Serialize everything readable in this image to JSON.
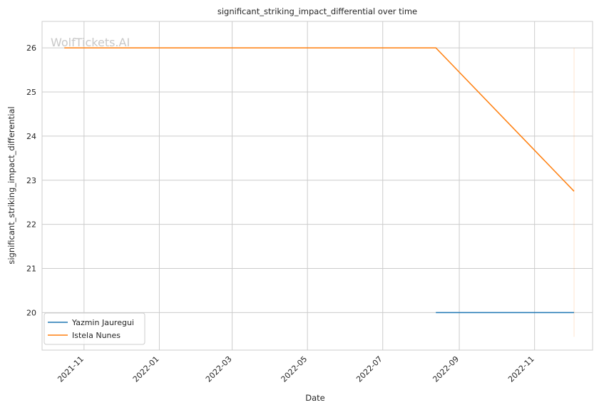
{
  "chart_data": {
    "type": "line",
    "title": "significant_striking_impact_differential over time",
    "xlabel": "Date",
    "ylabel": "significant_striking_impact_differential",
    "watermark": "WolfTickets.AI",
    "x_axis_type": "date",
    "xlim": [
      "2021-09-28",
      "2022-12-18"
    ],
    "ylim": [
      19.15,
      26.6
    ],
    "x_ticks": [
      "2021-11-01",
      "2022-01-01",
      "2022-03-01",
      "2022-05-01",
      "2022-07-01",
      "2022-09-01",
      "2022-11-01"
    ],
    "x_tick_labels": [
      "2021-11",
      "2022-01",
      "2022-03",
      "2022-05",
      "2022-07",
      "2022-09",
      "2022-11"
    ],
    "y_ticks": [
      20,
      21,
      22,
      23,
      24,
      25,
      26
    ],
    "y_tick_labels": [
      "20",
      "21",
      "22",
      "23",
      "24",
      "25",
      "26"
    ],
    "grid": true,
    "legend_position": "lower-left",
    "series": [
      {
        "name": "Yazmin Jauregui",
        "color": "#1f77b4",
        "points": [
          {
            "x": "2022-08-13",
            "y": 20
          },
          {
            "x": "2022-12-03",
            "y": 20
          }
        ]
      },
      {
        "name": "Istela Nunes",
        "color": "#ff7f0e",
        "points": [
          {
            "x": "2021-10-16",
            "y": 26
          },
          {
            "x": "2022-08-13",
            "y": 26
          },
          {
            "x": "2022-12-03",
            "y": 22.75
          }
        ]
      }
    ],
    "vertical_markers": [
      {
        "x": "2022-12-03",
        "y_range": [
          19.45,
          26
        ],
        "color": "#ff7f0e"
      }
    ]
  }
}
